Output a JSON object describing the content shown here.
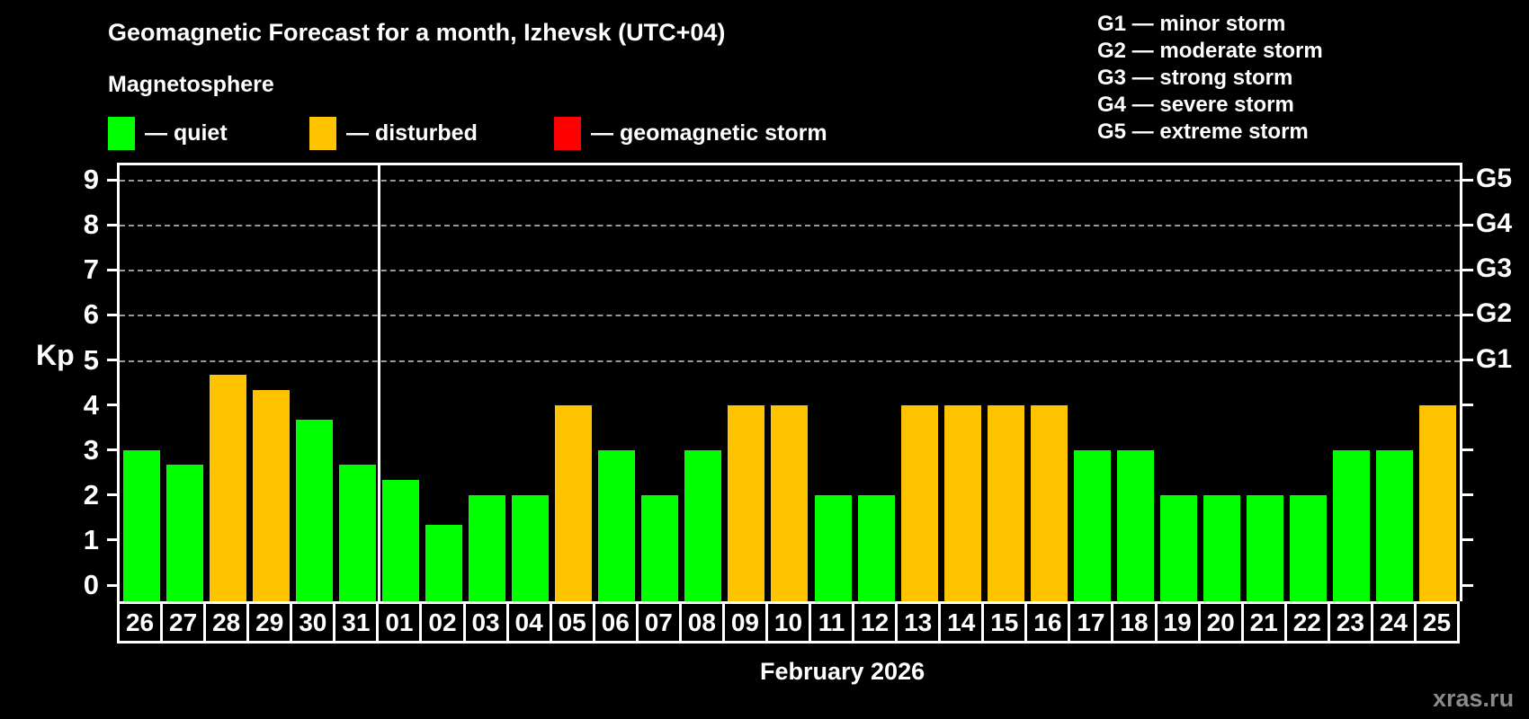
{
  "header": {
    "title": "Geomagnetic Forecast for a month, Izhevsk (UTC+04)",
    "subtitle": "Magnetosphere"
  },
  "legend": {
    "items": [
      {
        "state": "quiet",
        "label": "— quiet",
        "color": "#00FF00"
      },
      {
        "state": "disturbed",
        "label": "— disturbed",
        "color": "#FFC400"
      },
      {
        "state": "storm",
        "label": "— geomagnetic storm",
        "color": "#FF0000"
      }
    ]
  },
  "g_legend": {
    "lines": [
      "G1 — minor storm",
      "G2 — moderate storm",
      "G3 — strong storm",
      "G4 — severe storm",
      "G5 — extreme storm"
    ]
  },
  "axes": {
    "y_label": "Kp",
    "x_label": "February 2026",
    "y_ticks": [
      0,
      1,
      2,
      3,
      4,
      5,
      6,
      7,
      8,
      9
    ],
    "g_labels": [
      {
        "kp": 5,
        "label": "G1"
      },
      {
        "kp": 6,
        "label": "G2"
      },
      {
        "kp": 7,
        "label": "G3"
      },
      {
        "kp": 8,
        "label": "G4"
      },
      {
        "kp": 9,
        "label": "G5"
      }
    ]
  },
  "watermark": "xras.ru",
  "chart_data": {
    "type": "bar",
    "title": "Geomagnetic Forecast for a month, Izhevsk (UTC+04)",
    "xlabel": "February 2026",
    "ylabel": "Kp",
    "ylim": [
      0,
      9.5
    ],
    "grid": "horizontal dashed lines at Kp 5-9 (G1-G5)",
    "legend_position": "top-left",
    "month_divider_after_index": 5,
    "state_colors": {
      "quiet": "#00FF00",
      "disturbed": "#FFC400",
      "storm": "#FF0000"
    },
    "days": [
      {
        "day": "26",
        "kp": 3.0,
        "state": "quiet"
      },
      {
        "day": "27",
        "kp": 2.67,
        "state": "quiet"
      },
      {
        "day": "28",
        "kp": 4.67,
        "state": "disturbed"
      },
      {
        "day": "29",
        "kp": 4.33,
        "state": "disturbed"
      },
      {
        "day": "30",
        "kp": 3.67,
        "state": "quiet"
      },
      {
        "day": "31",
        "kp": 2.67,
        "state": "quiet"
      },
      {
        "day": "01",
        "kp": 2.33,
        "state": "quiet"
      },
      {
        "day": "02",
        "kp": 1.33,
        "state": "quiet"
      },
      {
        "day": "03",
        "kp": 2.0,
        "state": "quiet"
      },
      {
        "day": "04",
        "kp": 2.0,
        "state": "quiet"
      },
      {
        "day": "05",
        "kp": 4.0,
        "state": "disturbed"
      },
      {
        "day": "06",
        "kp": 3.0,
        "state": "quiet"
      },
      {
        "day": "07",
        "kp": 2.0,
        "state": "quiet"
      },
      {
        "day": "08",
        "kp": 3.0,
        "state": "quiet"
      },
      {
        "day": "09",
        "kp": 4.0,
        "state": "disturbed"
      },
      {
        "day": "10",
        "kp": 4.0,
        "state": "disturbed"
      },
      {
        "day": "11",
        "kp": 2.0,
        "state": "quiet"
      },
      {
        "day": "12",
        "kp": 2.0,
        "state": "quiet"
      },
      {
        "day": "13",
        "kp": 4.0,
        "state": "disturbed"
      },
      {
        "day": "14",
        "kp": 4.0,
        "state": "disturbed"
      },
      {
        "day": "15",
        "kp": 4.0,
        "state": "disturbed"
      },
      {
        "day": "16",
        "kp": 4.0,
        "state": "disturbed"
      },
      {
        "day": "17",
        "kp": 3.0,
        "state": "quiet"
      },
      {
        "day": "18",
        "kp": 3.0,
        "state": "quiet"
      },
      {
        "day": "19",
        "kp": 2.0,
        "state": "quiet"
      },
      {
        "day": "20",
        "kp": 2.0,
        "state": "quiet"
      },
      {
        "day": "21",
        "kp": 2.0,
        "state": "quiet"
      },
      {
        "day": "22",
        "kp": 2.0,
        "state": "quiet"
      },
      {
        "day": "23",
        "kp": 3.0,
        "state": "quiet"
      },
      {
        "day": "24",
        "kp": 3.0,
        "state": "quiet"
      },
      {
        "day": "25",
        "kp": 4.0,
        "state": "disturbed"
      }
    ]
  }
}
